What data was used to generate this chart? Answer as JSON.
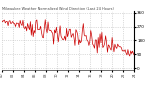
{
  "title": "Milwaukee Weather Normalized Wind Direction (Last 24 Hours)",
  "line_color": "#cc0000",
  "bg_color": "#ffffff",
  "grid_color": "#bbbbbb",
  "y_label_color": "#000000",
  "ylim": [
    -10,
    370
  ],
  "yticks": [
    0,
    90,
    180,
    270,
    360
  ],
  "ytick_labels": [
    "0",
    "90",
    "180",
    "270",
    "360"
  ],
  "n_points": 144,
  "seed": 7
}
